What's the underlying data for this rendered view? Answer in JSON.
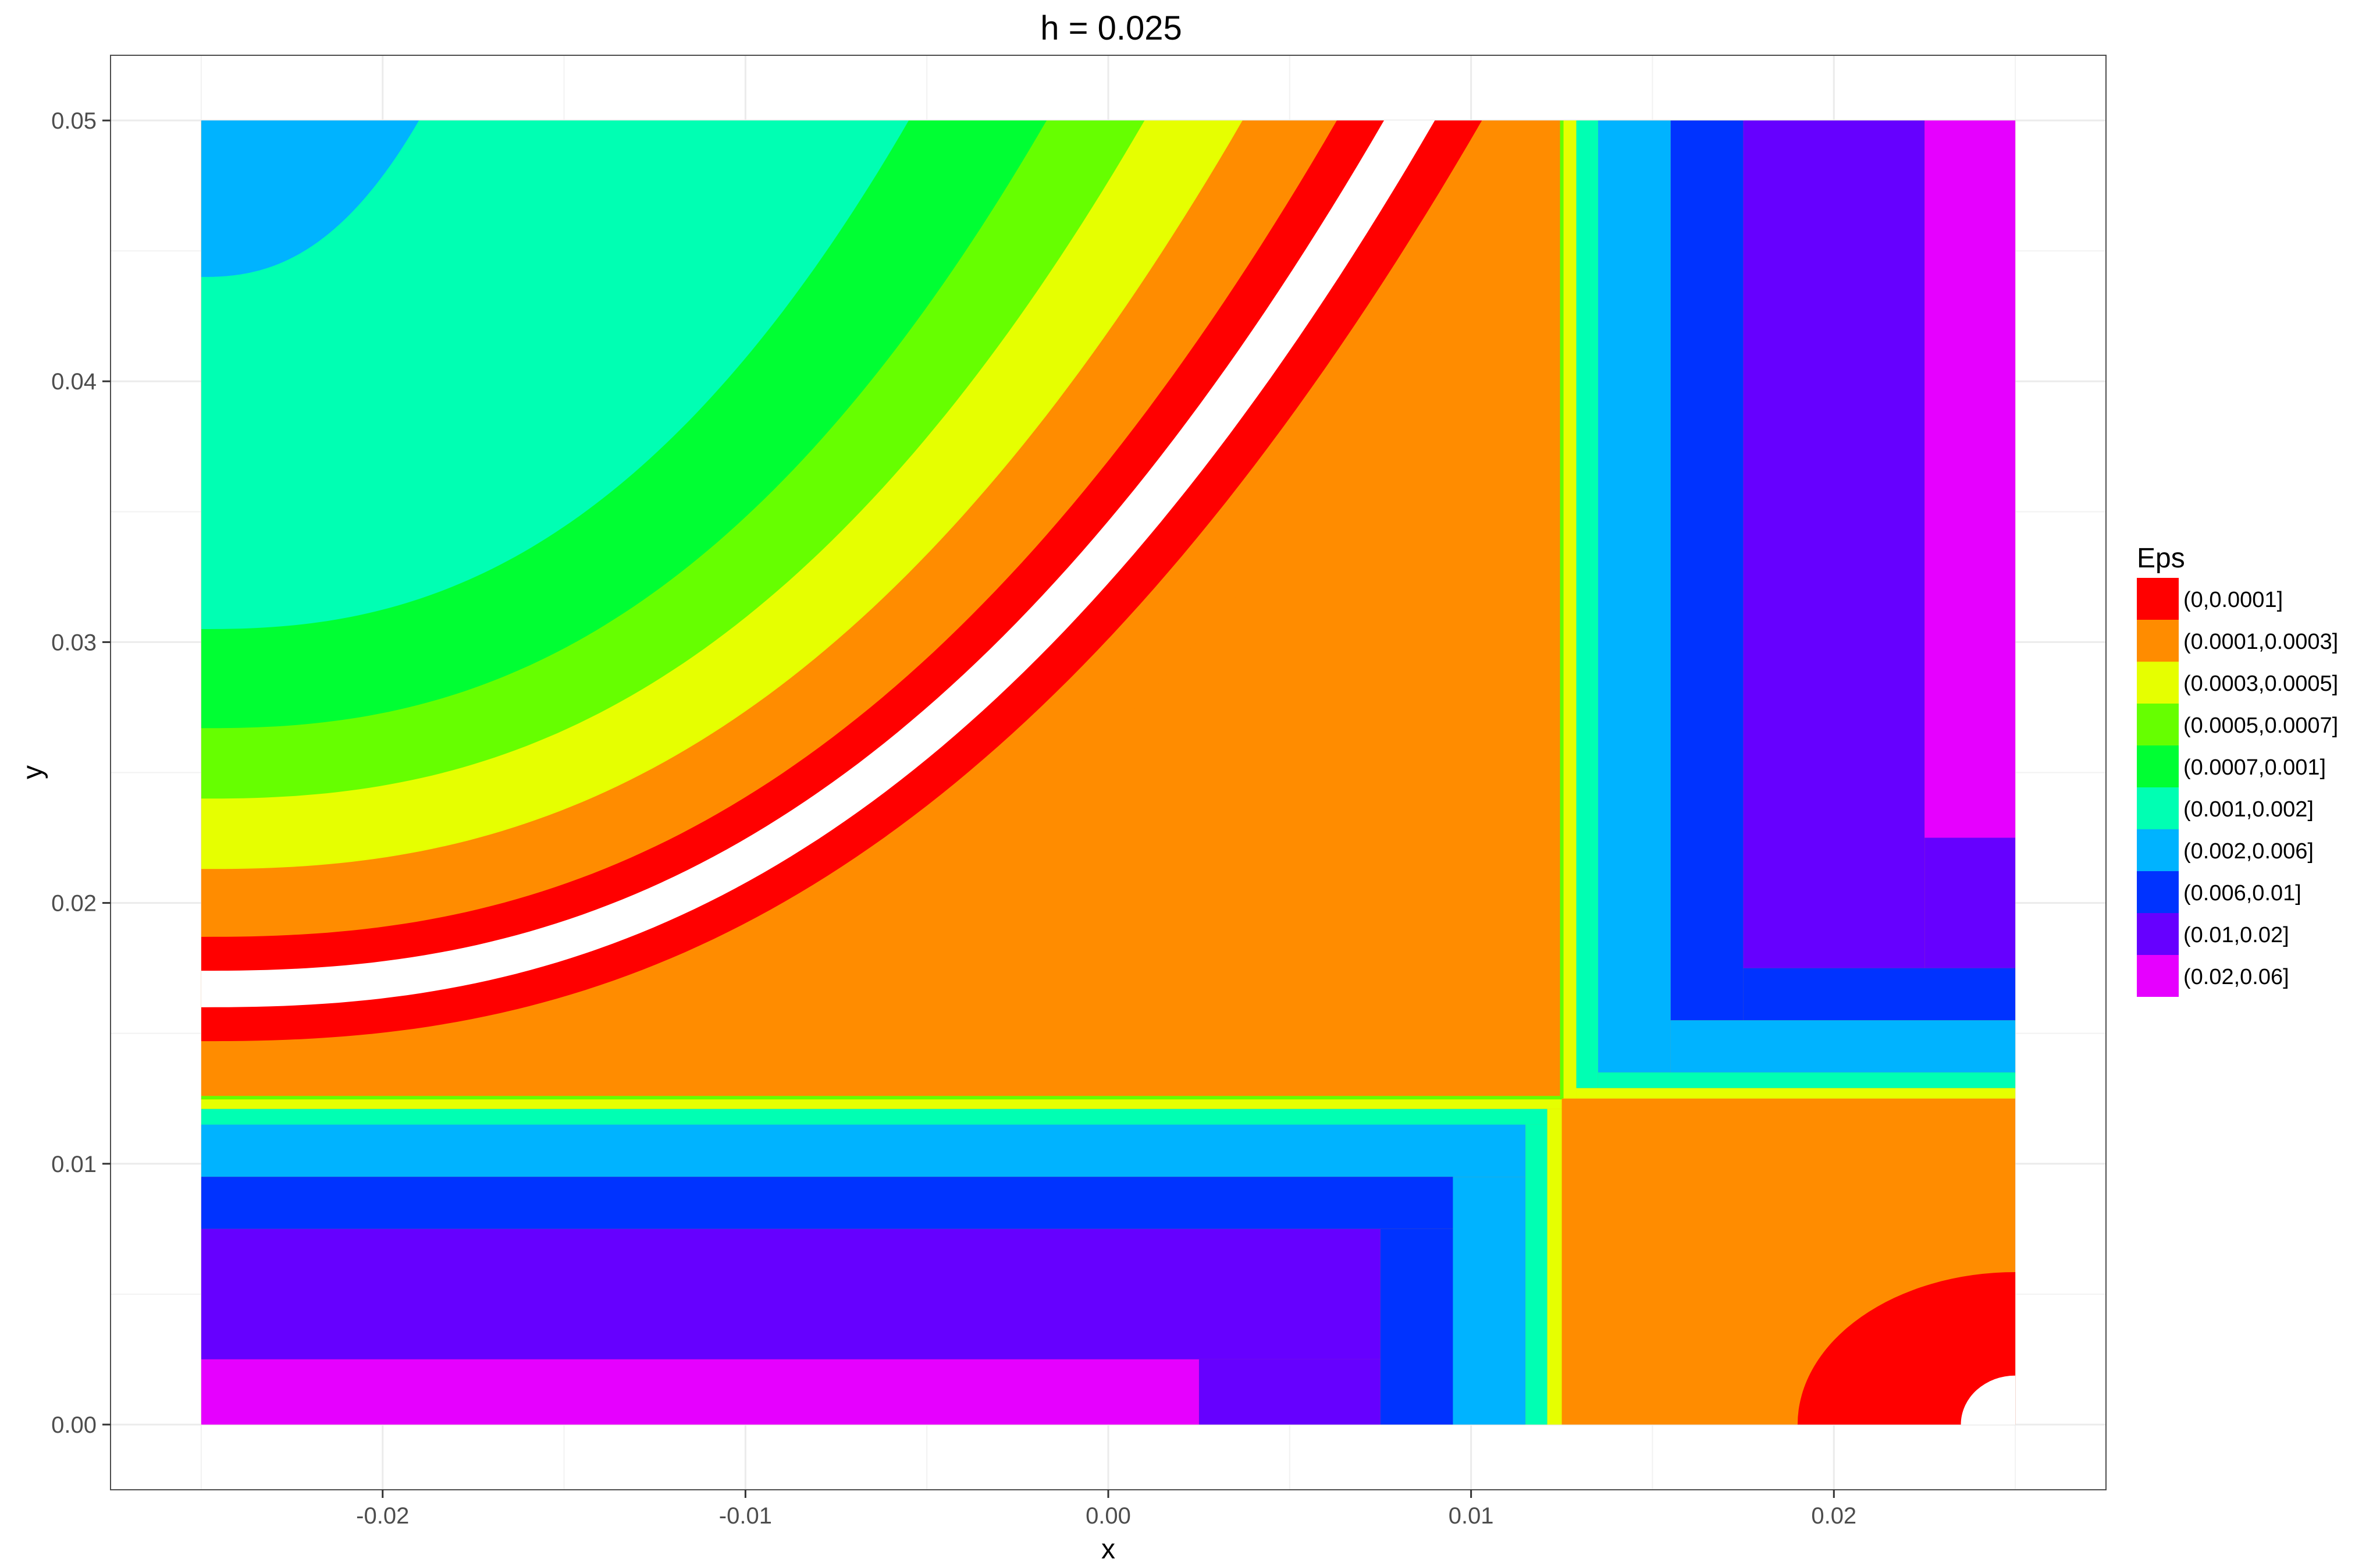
{
  "chart_data": {
    "type": "heatmap",
    "title": "h = 0.025",
    "xlabel": "x",
    "ylabel": "y",
    "xlim": [
      -0.0275,
      0.0275
    ],
    "ylim": [
      -0.0025,
      0.0525
    ],
    "data_extent": {
      "x": [
        -0.025,
        0.025
      ],
      "y": [
        0,
        0.05
      ]
    },
    "x_ticks": [
      {
        "value": -0.02,
        "label": "-0.02"
      },
      {
        "value": -0.01,
        "label": "-0.01"
      },
      {
        "value": 0.0,
        "label": "0.00"
      },
      {
        "value": 0.01,
        "label": "0.01"
      },
      {
        "value": 0.02,
        "label": "0.02"
      }
    ],
    "y_ticks": [
      {
        "value": 0.0,
        "label": "0.00"
      },
      {
        "value": 0.01,
        "label": "0.01"
      },
      {
        "value": 0.02,
        "label": "0.02"
      },
      {
        "value": 0.03,
        "label": "0.03"
      },
      {
        "value": 0.04,
        "label": "0.04"
      },
      {
        "value": 0.05,
        "label": "0.05"
      }
    ],
    "grid": true,
    "legend": {
      "title": "Eps",
      "position": "right",
      "entries": [
        {
          "label": "(0,0.0001]",
          "color": "#ff0000"
        },
        {
          "label": "(0.0001,0.0003]",
          "color": "#ff8c00"
        },
        {
          "label": "(0.0003,0.0005]",
          "color": "#e6ff00"
        },
        {
          "label": "(0.0005,0.0007]",
          "color": "#66ff00"
        },
        {
          "label": "(0.0007,0.001]",
          "color": "#00ff33"
        },
        {
          "label": "(0.001,0.002]",
          "color": "#00ffb3"
        },
        {
          "label": "(0.002,0.006]",
          "color": "#00b3ff"
        },
        {
          "label": "(0.006,0.01]",
          "color": "#0033ff"
        },
        {
          "label": "(0.01,0.02]",
          "color": "#6600ff"
        },
        {
          "label": "(0.02,0.06]",
          "color": "#e600ff"
        }
      ]
    },
    "regions": {
      "curve_bands": {
        "y_at_x_neg_0_025": [
          0.044,
          0.0305,
          0.0267,
          0.024,
          0.0213,
          0.0187,
          0.0174,
          0.016,
          0.0147,
          0.0121
        ],
        "x_at_y_0_05": [
          -0.019,
          -0.0055,
          -0.0017,
          0.001,
          0.0037,
          0.0063,
          0.0076,
          0.009,
          0.0103,
          0.0125
        ],
        "colors": [
          "#00b3ff",
          "#00ffb3",
          "#00ff33",
          "#66ff00",
          "#e6ff00",
          "#ff8c00",
          "#ff0000",
          "#ffffff",
          "#ff0000",
          "#ff8c00"
        ]
      },
      "bottom_left_steps": [
        {
          "y_range": [
            0,
            0.0025
          ],
          "x_boundary": 0.0025,
          "color_left": "#e600ff"
        },
        {
          "y_range": [
            0.0025,
            0.0075
          ],
          "x_boundary": 0.0075,
          "color_left": "#6600ff"
        },
        {
          "y_range": [
            0.0075,
            0.0095
          ],
          "x_boundary": 0.0095,
          "color_left": "#0033ff"
        },
        {
          "y_range": [
            0.0095,
            0.0115
          ],
          "x_boundary": 0.0115,
          "color_left": "#00b3ff"
        },
        {
          "y_range": [
            0.0115,
            0.0121
          ],
          "x_boundary": 0.0121,
          "color_left": "#00ffb3"
        },
        {
          "y_range": [
            0.0121,
            0.0125
          ],
          "x_boundary": 0.0125,
          "color_left": "#e6ff00"
        }
      ],
      "top_right_steps": [
        {
          "x_range": [
            0.0225,
            0.025
          ],
          "y_boundary": 0.0225,
          "color_top": "#e600ff"
        },
        {
          "x_range": [
            0.0175,
            0.0225
          ],
          "y_boundary": 0.0175,
          "color_top": "#6600ff"
        },
        {
          "x_range": [
            0.0155,
            0.0175
          ],
          "y_boundary": 0.0155,
          "color_top": "#0033ff"
        },
        {
          "x_range": [
            0.0135,
            0.0155
          ],
          "y_boundary": 0.0135,
          "color_top": "#00b3ff"
        },
        {
          "x_range": [
            0.0129,
            0.0135
          ],
          "y_boundary": 0.0129,
          "color_top": "#00ffb3"
        },
        {
          "x_range": [
            0.0125,
            0.0129
          ],
          "y_boundary": 0.0125,
          "color_top": "#e6ff00"
        }
      ],
      "bottom_right_corner": {
        "center": [
          0.025,
          0.0
        ],
        "red_radius": 0.006,
        "white_radius": 0.0015,
        "colors": [
          "#ff8c00",
          "#ff0000",
          "#ffffff"
        ]
      }
    }
  }
}
